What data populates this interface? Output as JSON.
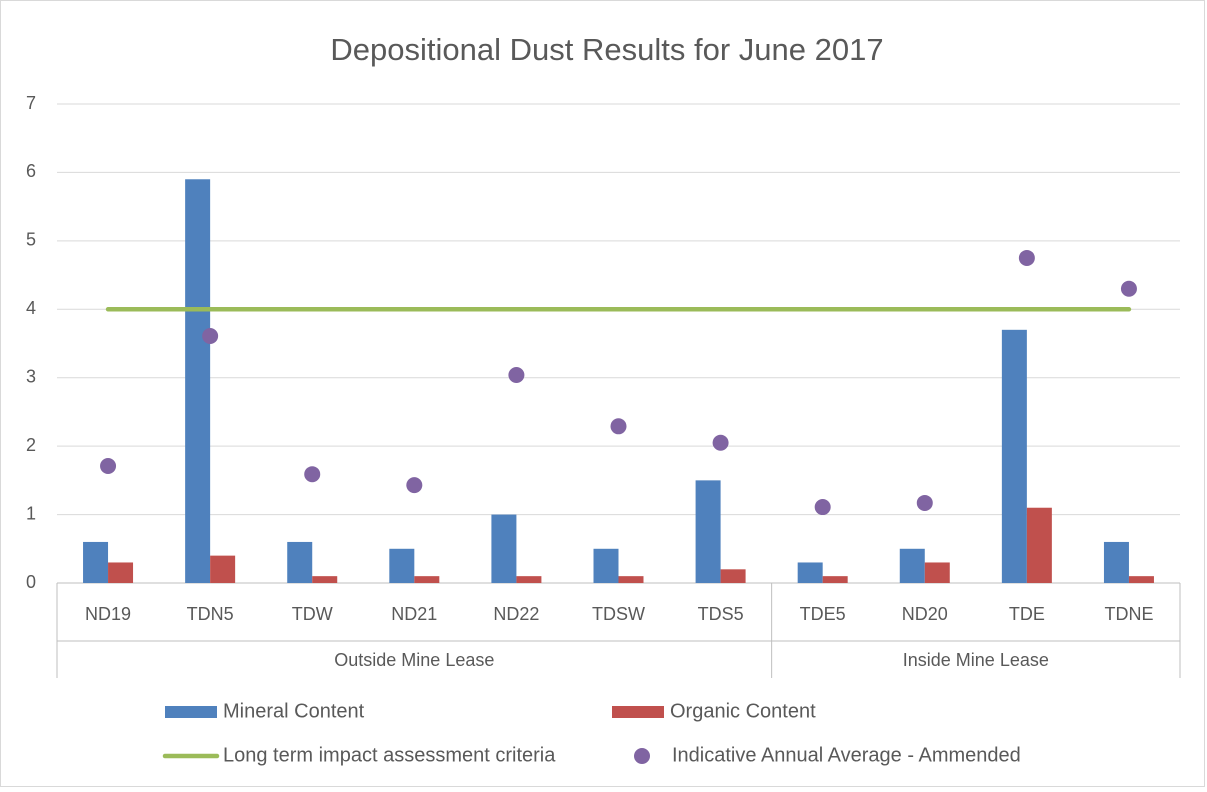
{
  "chart_data": {
    "type": "bar",
    "title": "Depositional Dust Results for June 2017",
    "categories": [
      "ND19",
      "TDN5",
      "TDW",
      "ND21",
      "ND22",
      "TDSW",
      "TDS5",
      "TDE5",
      "ND20",
      "TDE",
      "TDNE"
    ],
    "category_groups": [
      "Outside Mine Lease",
      "Outside Mine Lease",
      "Outside Mine Lease",
      "Outside Mine Lease",
      "Outside Mine Lease",
      "Outside Mine Lease",
      "Outside Mine Lease",
      "Inside Mine Lease",
      "Inside Mine Lease",
      "Inside Mine Lease",
      "Inside Mine Lease"
    ],
    "series": [
      {
        "name": "Mineral Content",
        "type": "bar",
        "color": "#4f81bd",
        "values": [
          0.6,
          5.9,
          0.6,
          0.5,
          1.0,
          0.5,
          1.5,
          0.3,
          0.5,
          3.7,
          0.6
        ]
      },
      {
        "name": "Organic Content",
        "type": "bar",
        "color": "#c0504d",
        "values": [
          0.3,
          0.4,
          0.1,
          0.1,
          0.1,
          0.1,
          0.2,
          0.1,
          0.3,
          1.1,
          0.1
        ]
      },
      {
        "name": "Long term impact assessment criteria",
        "type": "line",
        "color": "#9bbb59",
        "values": [
          4,
          4,
          4,
          4,
          4,
          4,
          4,
          4,
          4,
          4,
          4
        ]
      },
      {
        "name": "Indicative Annual Average - Ammended",
        "type": "scatter",
        "color": "#8064a2",
        "values": [
          1.71,
          3.61,
          1.59,
          1.43,
          3.04,
          2.29,
          2.05,
          1.11,
          1.17,
          4.75,
          4.3
        ]
      }
    ],
    "ylim": [
      0,
      7
    ],
    "yticks": [
      0,
      1,
      2,
      3,
      4,
      5,
      6,
      7
    ],
    "grid": true,
    "legend": "bottom"
  }
}
